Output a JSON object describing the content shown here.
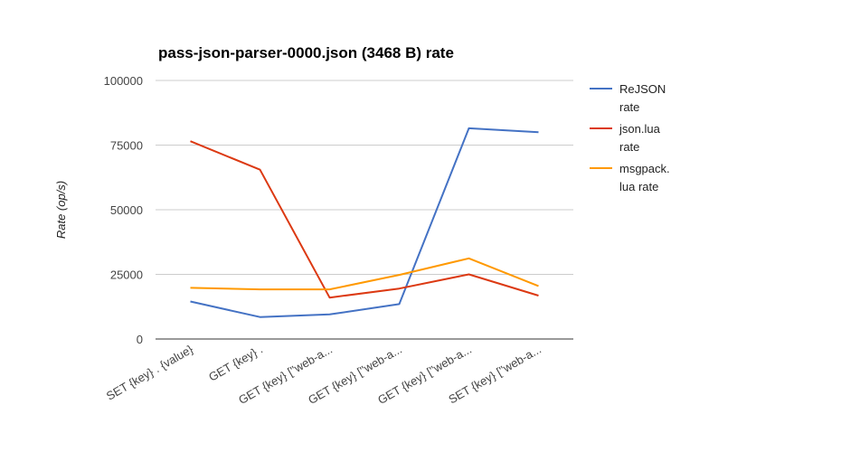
{
  "chart_data": {
    "type": "line",
    "title": "pass-json-parser-0000.json (3468 B) rate",
    "xlabel": "",
    "ylabel": "Rate (op/s)",
    "ylim": [
      0,
      100000
    ],
    "yticks": [
      0,
      25000,
      50000,
      75000,
      100000
    ],
    "grid": true,
    "legend_position": "right",
    "categories": [
      "SET {key} . {value}",
      "GET {key} .",
      "GET {key} [\"web-a...",
      "GET {key} [\"web-a...",
      "GET {key} [\"web-a...",
      "SET {key} [\"web-a..."
    ],
    "series": [
      {
        "name": "ReJSON rate",
        "legend_lines": [
          "ReJSON",
          "rate"
        ],
        "color": "#4472c4",
        "values": [
          14500,
          8500,
          9500,
          13500,
          81500,
          80000
        ]
      },
      {
        "name": "json.lua rate",
        "legend_lines": [
          "json.lua",
          "rate"
        ],
        "color": "#dc3912",
        "values": [
          76500,
          65500,
          16000,
          19500,
          25000,
          16800
        ]
      },
      {
        "name": "msgpack.lua rate",
        "legend_lines": [
          "msgpack.",
          "lua rate"
        ],
        "color": "#ff9900",
        "values": [
          19800,
          19200,
          19200,
          24800,
          31200,
          20500
        ]
      }
    ]
  }
}
